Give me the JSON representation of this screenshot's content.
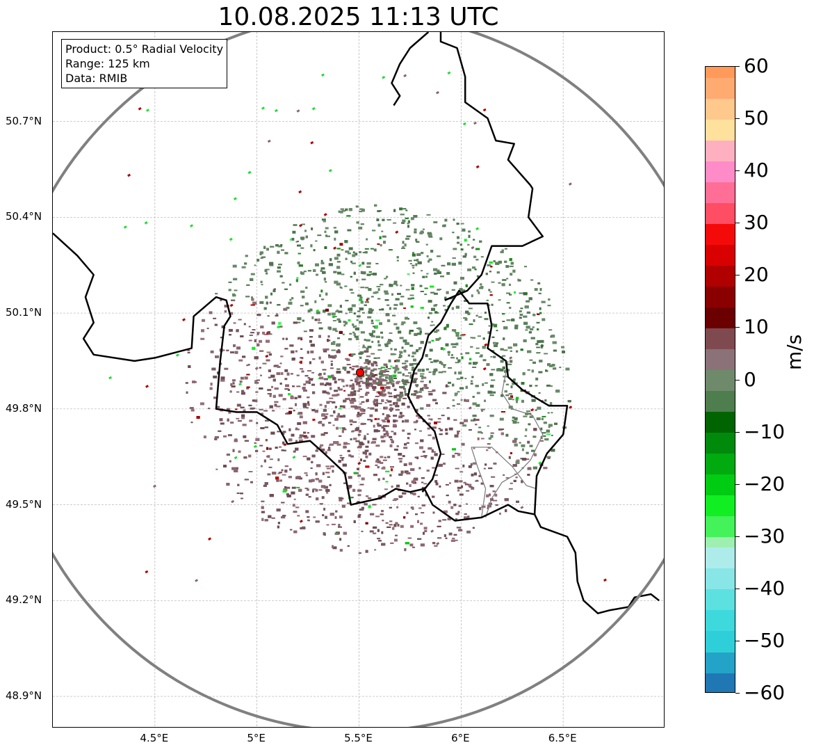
{
  "title": "10.08.2025 11:13 UTC",
  "info_box": {
    "product": "Product: 0.5° Radial Velocity",
    "range": "Range: 125 km",
    "data": "Data: RMIB"
  },
  "map": {
    "lon_range": [
      4.0,
      7.0
    ],
    "lat_range": [
      48.8,
      50.98
    ],
    "radar_site": {
      "lon": 5.505,
      "lat": 49.914
    },
    "range_ring_km": 125,
    "x_ticks": [
      {
        "lon": 4.5,
        "label": "4.5°E"
      },
      {
        "lon": 5.0,
        "label": "5°E"
      },
      {
        "lon": 5.5,
        "label": "5.5°E"
      },
      {
        "lon": 6.0,
        "label": "6°E"
      },
      {
        "lon": 6.5,
        "label": "6.5°E"
      }
    ],
    "y_ticks": [
      {
        "lat": 50.7,
        "label": "50.7°N"
      },
      {
        "lat": 50.4,
        "label": "50.4°N"
      },
      {
        "lat": 50.1,
        "label": "50.1°N"
      },
      {
        "lat": 49.8,
        "label": "49.8°N"
      },
      {
        "lat": 49.5,
        "label": "49.5°N"
      },
      {
        "lat": 49.2,
        "label": "49.2°N"
      },
      {
        "lat": 48.9,
        "label": "48.9°N"
      }
    ],
    "borders": [
      [
        [
          4.0,
          50.35
        ],
        [
          4.12,
          50.28
        ],
        [
          4.2,
          50.22
        ],
        [
          4.16,
          50.15
        ],
        [
          4.2,
          50.07
        ],
        [
          4.15,
          50.02
        ],
        [
          4.2,
          49.97
        ],
        [
          4.4,
          49.95
        ],
        [
          4.5,
          49.96
        ],
        [
          4.68,
          49.99
        ],
        [
          4.69,
          50.09
        ],
        [
          4.8,
          50.15
        ],
        [
          4.85,
          50.14
        ],
        [
          4.87,
          50.09
        ],
        [
          4.84,
          50.06
        ],
        [
          4.82,
          49.95
        ],
        [
          4.8,
          49.8
        ],
        [
          4.9,
          49.79
        ],
        [
          5.0,
          49.79
        ],
        [
          5.1,
          49.75
        ],
        [
          5.15,
          49.69
        ],
        [
          5.26,
          49.7
        ],
        [
          5.33,
          49.66
        ],
        [
          5.43,
          49.6
        ],
        [
          5.46,
          49.5
        ],
        [
          5.6,
          49.52
        ],
        [
          5.68,
          49.55
        ],
        [
          5.75,
          49.54
        ],
        [
          5.82,
          49.55
        ],
        [
          5.86,
          49.5
        ],
        [
          5.97,
          49.45
        ],
        [
          6.1,
          49.46
        ],
        [
          6.23,
          49.5
        ],
        [
          6.28,
          49.48
        ],
        [
          6.36,
          49.47
        ],
        [
          6.39,
          49.43
        ],
        [
          6.52,
          49.4
        ],
        [
          6.56,
          49.35
        ],
        [
          6.57,
          49.26
        ],
        [
          6.6,
          49.2
        ],
        [
          6.67,
          49.16
        ],
        [
          6.73,
          49.17
        ],
        [
          6.82,
          49.18
        ],
        [
          6.85,
          49.21
        ],
        [
          6.93,
          49.22
        ],
        [
          6.97,
          49.2
        ]
      ],
      [
        [
          5.81,
          49.54
        ],
        [
          5.86,
          49.58
        ],
        [
          5.9,
          49.66
        ],
        [
          5.87,
          49.73
        ],
        [
          5.78,
          49.79
        ],
        [
          5.74,
          49.84
        ],
        [
          5.77,
          49.92
        ],
        [
          5.81,
          49.96
        ],
        [
          5.84,
          50.03
        ],
        [
          5.9,
          50.07
        ],
        [
          5.95,
          50.13
        ],
        [
          5.99,
          50.17
        ],
        [
          6.04,
          50.13
        ],
        [
          6.13,
          50.13
        ],
        [
          6.15,
          50.06
        ],
        [
          6.13,
          49.99
        ],
        [
          6.22,
          49.95
        ],
        [
          6.23,
          49.9
        ],
        [
          6.3,
          49.86
        ],
        [
          6.43,
          49.81
        ],
        [
          6.52,
          49.81
        ],
        [
          6.5,
          49.72
        ],
        [
          6.42,
          49.66
        ],
        [
          6.37,
          49.59
        ],
        [
          6.36,
          49.47
        ]
      ],
      [
        [
          5.92,
          50.14
        ],
        [
          6.03,
          50.17
        ],
        [
          6.1,
          50.22
        ],
        [
          6.15,
          50.31
        ],
        [
          6.3,
          50.31
        ],
        [
          6.4,
          50.34
        ],
        [
          6.33,
          50.4
        ],
        [
          6.35,
          50.49
        ],
        [
          6.34,
          50.5
        ],
        [
          6.23,
          50.58
        ],
        [
          6.26,
          50.63
        ],
        [
          6.17,
          50.64
        ],
        [
          6.13,
          50.71
        ],
        [
          6.02,
          50.76
        ],
        [
          6.02,
          50.84
        ],
        [
          5.98,
          50.93
        ],
        [
          5.9,
          50.95
        ],
        [
          5.9,
          50.98
        ]
      ],
      [
        [
          5.84,
          50.98
        ],
        [
          5.75,
          50.93
        ],
        [
          5.7,
          50.88
        ],
        [
          5.66,
          50.82
        ],
        [
          5.7,
          50.78
        ],
        [
          5.67,
          50.75
        ]
      ]
    ],
    "inner_borders": [
      [
        [
          6.23,
          49.95
        ],
        [
          6.2,
          49.85
        ],
        [
          6.25,
          49.8
        ],
        [
          6.35,
          49.78
        ],
        [
          6.4,
          49.72
        ],
        [
          6.34,
          49.64
        ],
        [
          6.28,
          49.6
        ],
        [
          6.2,
          49.57
        ],
        [
          6.15,
          49.52
        ],
        [
          6.12,
          49.46
        ]
      ],
      [
        [
          6.05,
          49.68
        ],
        [
          6.15,
          49.68
        ],
        [
          6.25,
          49.62
        ],
        [
          6.32,
          49.56
        ],
        [
          6.37,
          49.55
        ]
      ],
      [
        [
          6.1,
          49.46
        ],
        [
          6.12,
          49.55
        ],
        [
          6.08,
          49.62
        ],
        [
          6.05,
          49.68
        ]
      ]
    ]
  },
  "colorbar": {
    "unit": "m/s",
    "min": -60,
    "max": 60,
    "ticks": [
      60,
      50,
      40,
      30,
      20,
      10,
      0,
      -10,
      -20,
      -30,
      -40,
      -50,
      -60
    ],
    "tick_labels": [
      "60",
      "50",
      "40",
      "30",
      "20",
      "10",
      "0",
      "−10",
      "−20",
      "−30",
      "−40",
      "−50",
      "−60"
    ],
    "bands": [
      {
        "from": -60,
        "to": -56,
        "color": "#1f77b4"
      },
      {
        "from": -56,
        "to": -52,
        "color": "#23a3c7"
      },
      {
        "from": -52,
        "to": -48,
        "color": "#2ecfd9"
      },
      {
        "from": -48,
        "to": -44,
        "color": "#3dd9dd"
      },
      {
        "from": -44,
        "to": -40,
        "color": "#5de0e0"
      },
      {
        "from": -40,
        "to": -36,
        "color": "#88e6e6"
      },
      {
        "from": -36,
        "to": -32,
        "color": "#aeeceb"
      },
      {
        "from": -32,
        "to": -30,
        "color": "#9ef0b0"
      },
      {
        "from": -30,
        "to": -26,
        "color": "#44f25a"
      },
      {
        "from": -26,
        "to": -22,
        "color": "#11ee22"
      },
      {
        "from": -22,
        "to": -18,
        "color": "#00cc11"
      },
      {
        "from": -18,
        "to": -14,
        "color": "#00aa0f"
      },
      {
        "from": -14,
        "to": -10,
        "color": "#008a0c"
      },
      {
        "from": -10,
        "to": -6,
        "color": "#006400"
      },
      {
        "from": -6,
        "to": -2,
        "color": "#4e7d4e"
      },
      {
        "from": -2,
        "to": 2,
        "color": "#6e8a6a"
      },
      {
        "from": 2,
        "to": 6,
        "color": "#8a7278"
      },
      {
        "from": 6,
        "to": 10,
        "color": "#7e4a50"
      },
      {
        "from": 10,
        "to": 14,
        "color": "#6b0000"
      },
      {
        "from": 14,
        "to": 18,
        "color": "#8a0000"
      },
      {
        "from": 18,
        "to": 22,
        "color": "#b00000"
      },
      {
        "from": 22,
        "to": 26,
        "color": "#d80000"
      },
      {
        "from": 26,
        "to": 30,
        "color": "#f50a0a"
      },
      {
        "from": 30,
        "to": 34,
        "color": "#ff4d64"
      },
      {
        "from": 34,
        "to": 38,
        "color": "#ff6e96"
      },
      {
        "from": 38,
        "to": 42,
        "color": "#ff8cc8"
      },
      {
        "from": 42,
        "to": 46,
        "color": "#ffb0c0"
      },
      {
        "from": 46,
        "to": 50,
        "color": "#ffe19e"
      },
      {
        "from": 50,
        "to": 54,
        "color": "#ffc88c"
      },
      {
        "from": 54,
        "to": 58,
        "color": "#ffaa70"
      },
      {
        "from": 58,
        "to": 60,
        "color": "#ff9a5a"
      }
    ]
  },
  "colors": {
    "approaching_green": "#5c7f5c",
    "receding_mauve": "#8a6670",
    "ring": "#808080",
    "site_marker": "#ff0000"
  }
}
